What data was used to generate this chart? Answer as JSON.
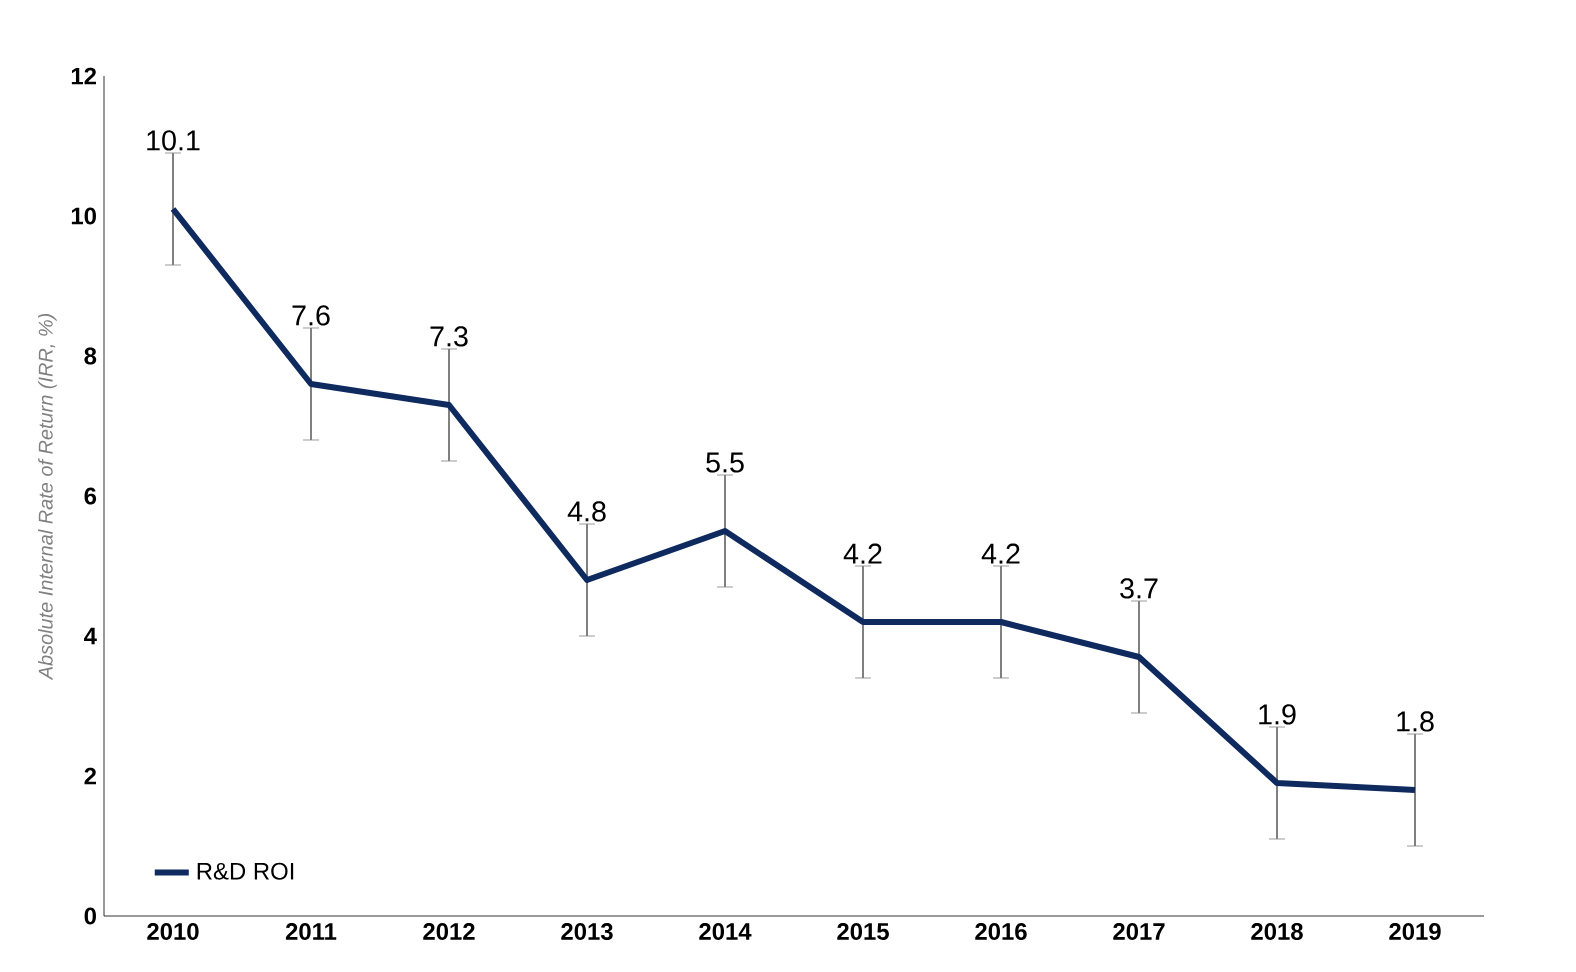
{
  "chart_data": {
    "type": "line",
    "ylabel": "Absolute Internal Rate of Return (IRR, %)",
    "categories": [
      "2010",
      "2011",
      "2012",
      "2013",
      "2014",
      "2015",
      "2016",
      "2017",
      "2018",
      "2019"
    ],
    "series": [
      {
        "name": "R&D ROI",
        "color": "#0f2a5f",
        "values": [
          10.1,
          7.6,
          7.3,
          4.8,
          5.5,
          4.2,
          4.2,
          3.7,
          1.9,
          1.8
        ],
        "errors": [
          0.8,
          0.8,
          0.8,
          0.8,
          0.8,
          0.8,
          0.8,
          0.8,
          0.8,
          0.8
        ]
      }
    ],
    "ylim": [
      0,
      12
    ],
    "yticks": [
      0,
      2,
      4,
      6,
      8,
      10,
      12
    ],
    "data_labels": true,
    "legend": "bottom left",
    "grid": false,
    "marker": "none",
    "line_style": "solid"
  }
}
